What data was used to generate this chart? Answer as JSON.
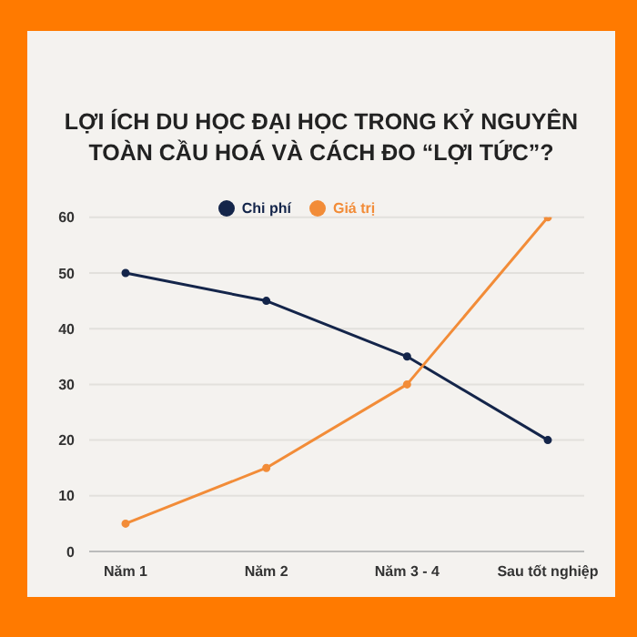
{
  "chart_data": {
    "type": "line",
    "title": "LỢI ÍCH DU HỌC ĐẠI HỌC TRONG KỶ NGUYÊN TOÀN CẦU HOÁ VÀ  CÁCH ĐO “LỢI TỨC”?",
    "categories": [
      "Năm 1",
      "Năm 2",
      "Năm 3 - 4",
      "Sau tốt nghiệp"
    ],
    "series": [
      {
        "name": "Chi phí",
        "color": "#14254a",
        "values": [
          50,
          45,
          35,
          20
        ]
      },
      {
        "name": "Giá trị",
        "color": "#f28c38",
        "values": [
          5,
          15,
          30,
          60
        ]
      }
    ],
    "ylim": [
      0,
      60
    ],
    "yticks": [
      0,
      10,
      20,
      30,
      40,
      50,
      60
    ],
    "grid": "y",
    "legend": "top",
    "marker": "circle",
    "line_style": "solid"
  }
}
